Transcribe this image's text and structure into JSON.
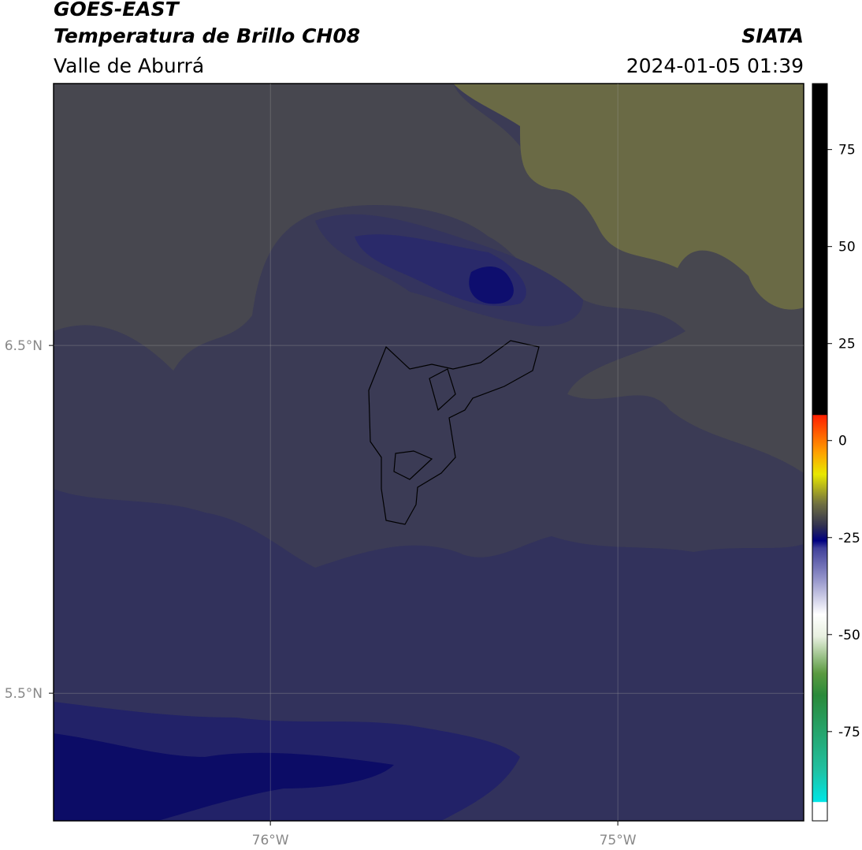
{
  "map_data": {
    "title": "GOES-EAST",
    "subtitle": "Temperatura de Brillo CH08",
    "region": "Valle de Aburrá",
    "agency": "SIATA",
    "timestamp": "2024-01-05 01:39",
    "xlim": [
      -76.624,
      -74.465
    ],
    "ylim": [
      5.133,
      7.253
    ],
    "xticks": [
      {
        "value": -76,
        "label": "76°W"
      },
      {
        "value": -75,
        "label": "75°W"
      }
    ],
    "yticks": [
      {
        "value": 6.5,
        "label": "6.5°N"
      },
      {
        "value": 5.5,
        "label": "5.5°N"
      }
    ],
    "grid": true,
    "colorbar": {
      "clim": [
        -98,
        92
      ],
      "ticks": [
        75,
        50,
        25,
        0,
        -25,
        -50,
        -75
      ]
    }
  }
}
